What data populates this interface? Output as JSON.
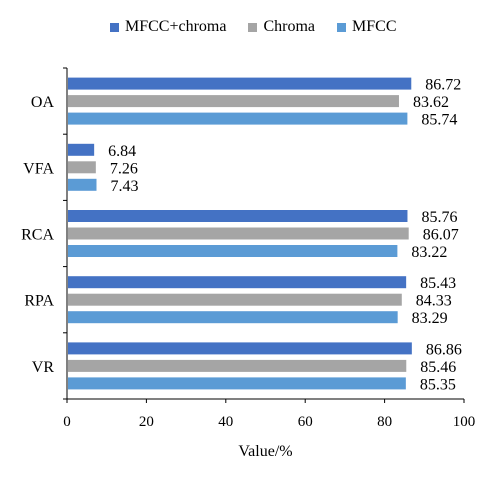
{
  "chart_data": {
    "type": "bar",
    "orientation": "horizontal",
    "categories": [
      "OA",
      "VFA",
      "RCA",
      "RPA",
      "VR"
    ],
    "series": [
      {
        "name": "MFCC+chroma",
        "color": "#4472C4",
        "values": [
          86.72,
          6.84,
          85.76,
          85.43,
          86.86
        ]
      },
      {
        "name": "Chroma",
        "color": "#A5A5A5",
        "values": [
          83.62,
          7.26,
          86.07,
          84.33,
          85.46
        ]
      },
      {
        "name": "MFCC",
        "color": "#5B9BD5",
        "values": [
          85.74,
          7.43,
          83.22,
          83.29,
          85.35
        ]
      }
    ],
    "xlabel": "Value/%",
    "ylabel": "",
    "xlim": [
      0,
      100
    ],
    "xticks": [
      0,
      20,
      40,
      60,
      80,
      100
    ],
    "legend_position": "top",
    "grid": false
  }
}
